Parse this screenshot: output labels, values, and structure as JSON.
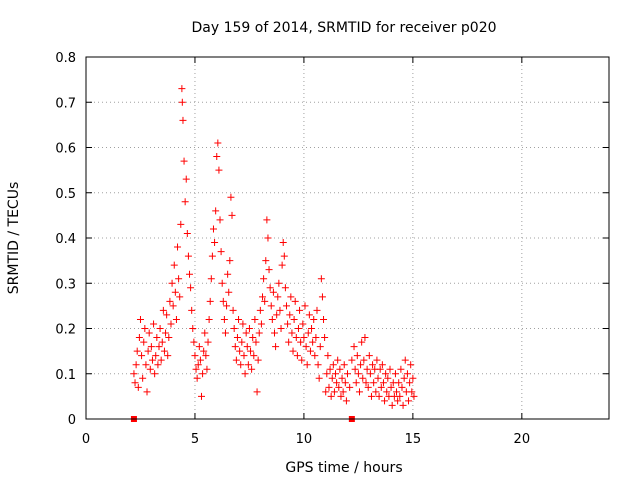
{
  "chart_data": {
    "type": "scatter",
    "title": "Day 159 of 2014, SRMTID for receiver p020",
    "xlabel": "GPS time / hours",
    "ylabel": "SRMTID / TECUs",
    "xlim": [
      0,
      24
    ],
    "ylim": [
      0,
      0.8
    ],
    "xticks": [
      0,
      5,
      10,
      15,
      20
    ],
    "yticks": [
      0,
      0.1,
      0.2,
      0.3,
      0.4,
      0.5,
      0.6,
      0.7,
      0.8
    ],
    "grid": true,
    "legend": "none",
    "marker": "+",
    "color": "#ff0000",
    "series": [
      {
        "name": "SRMTID",
        "points": [
          [
            2.2,
            0.1
          ],
          [
            2.25,
            0.08
          ],
          [
            2.3,
            0.12
          ],
          [
            2.35,
            0.15
          ],
          [
            2.4,
            0.07
          ],
          [
            2.45,
            0.18
          ],
          [
            2.5,
            0.22
          ],
          [
            2.55,
            0.14
          ],
          [
            2.6,
            0.09
          ],
          [
            2.65,
            0.17
          ],
          [
            2.7,
            0.2
          ],
          [
            2.75,
            0.12
          ],
          [
            2.8,
            0.06
          ],
          [
            2.85,
            0.15
          ],
          [
            2.9,
            0.19
          ],
          [
            2.95,
            0.11
          ],
          [
            3.0,
            0.16
          ],
          [
            3.05,
            0.13
          ],
          [
            3.1,
            0.21
          ],
          [
            3.15,
            0.1
          ],
          [
            3.2,
            0.14
          ],
          [
            3.25,
            0.18
          ],
          [
            3.3,
            0.12
          ],
          [
            3.35,
            0.16
          ],
          [
            3.4,
            0.2
          ],
          [
            3.45,
            0.13
          ],
          [
            3.5,
            0.17
          ],
          [
            3.55,
            0.24
          ],
          [
            3.6,
            0.15
          ],
          [
            3.65,
            0.19
          ],
          [
            3.7,
            0.23
          ],
          [
            3.75,
            0.14
          ],
          [
            3.8,
            0.18
          ],
          [
            3.85,
            0.26
          ],
          [
            3.9,
            0.21
          ],
          [
            3.95,
            0.3
          ],
          [
            4.0,
            0.25
          ],
          [
            4.05,
            0.34
          ],
          [
            4.1,
            0.28
          ],
          [
            4.15,
            0.22
          ],
          [
            4.2,
            0.38
          ],
          [
            4.25,
            0.31
          ],
          [
            4.3,
            0.27
          ],
          [
            4.35,
            0.43
          ],
          [
            4.4,
            0.73
          ],
          [
            4.42,
            0.7
          ],
          [
            4.45,
            0.66
          ],
          [
            4.5,
            0.57
          ],
          [
            4.55,
            0.48
          ],
          [
            4.6,
            0.53
          ],
          [
            4.65,
            0.41
          ],
          [
            4.7,
            0.36
          ],
          [
            4.75,
            0.32
          ],
          [
            4.8,
            0.29
          ],
          [
            4.85,
            0.24
          ],
          [
            4.9,
            0.2
          ],
          [
            4.95,
            0.17
          ],
          [
            5.0,
            0.14
          ],
          [
            5.05,
            0.11
          ],
          [
            5.1,
            0.09
          ],
          [
            5.15,
            0.12
          ],
          [
            5.2,
            0.16
          ],
          [
            5.25,
            0.13
          ],
          [
            5.3,
            0.05
          ],
          [
            5.35,
            0.1
          ],
          [
            5.4,
            0.15
          ],
          [
            5.45,
            0.19
          ],
          [
            5.5,
            0.14
          ],
          [
            5.55,
            0.11
          ],
          [
            5.6,
            0.17
          ],
          [
            5.65,
            0.22
          ],
          [
            5.7,
            0.26
          ],
          [
            5.75,
            0.31
          ],
          [
            5.8,
            0.36
          ],
          [
            5.85,
            0.42
          ],
          [
            5.9,
            0.39
          ],
          [
            5.95,
            0.46
          ],
          [
            6.0,
            0.58
          ],
          [
            6.05,
            0.61
          ],
          [
            6.1,
            0.55
          ],
          [
            6.15,
            0.44
          ],
          [
            6.2,
            0.37
          ],
          [
            6.25,
            0.3
          ],
          [
            6.3,
            0.26
          ],
          [
            6.35,
            0.22
          ],
          [
            6.4,
            0.19
          ],
          [
            6.45,
            0.25
          ],
          [
            6.5,
            0.32
          ],
          [
            6.55,
            0.28
          ],
          [
            6.6,
            0.35
          ],
          [
            6.65,
            0.49
          ],
          [
            6.7,
            0.45
          ],
          [
            6.75,
            0.24
          ],
          [
            6.8,
            0.2
          ],
          [
            6.85,
            0.16
          ],
          [
            6.9,
            0.13
          ],
          [
            6.95,
            0.18
          ],
          [
            7.0,
            0.22
          ],
          [
            7.05,
            0.15
          ],
          [
            7.1,
            0.12
          ],
          [
            7.15,
            0.17
          ],
          [
            7.2,
            0.21
          ],
          [
            7.25,
            0.14
          ],
          [
            7.3,
            0.1
          ],
          [
            7.35,
            0.19
          ],
          [
            7.4,
            0.16
          ],
          [
            7.45,
            0.12
          ],
          [
            7.5,
            0.2
          ],
          [
            7.55,
            0.15
          ],
          [
            7.6,
            0.11
          ],
          [
            7.65,
            0.18
          ],
          [
            7.7,
            0.14
          ],
          [
            7.75,
            0.22
          ],
          [
            7.8,
            0.17
          ],
          [
            7.85,
            0.06
          ],
          [
            7.9,
            0.13
          ],
          [
            7.95,
            0.19
          ],
          [
            8.0,
            0.24
          ],
          [
            8.05,
            0.21
          ],
          [
            8.1,
            0.27
          ],
          [
            8.15,
            0.31
          ],
          [
            8.2,
            0.26
          ],
          [
            8.25,
            0.35
          ],
          [
            8.3,
            0.44
          ],
          [
            8.35,
            0.4
          ],
          [
            8.4,
            0.33
          ],
          [
            8.45,
            0.29
          ],
          [
            8.5,
            0.25
          ],
          [
            8.55,
            0.22
          ],
          [
            8.6,
            0.28
          ],
          [
            8.65,
            0.19
          ],
          [
            8.7,
            0.16
          ],
          [
            8.75,
            0.23
          ],
          [
            8.8,
            0.27
          ],
          [
            8.85,
            0.3
          ],
          [
            8.9,
            0.24
          ],
          [
            8.95,
            0.2
          ],
          [
            9.0,
            0.34
          ],
          [
            9.05,
            0.39
          ],
          [
            9.1,
            0.36
          ],
          [
            9.15,
            0.29
          ],
          [
            9.2,
            0.25
          ],
          [
            9.25,
            0.21
          ],
          [
            9.3,
            0.17
          ],
          [
            9.35,
            0.23
          ],
          [
            9.4,
            0.27
          ],
          [
            9.45,
            0.19
          ],
          [
            9.5,
            0.15
          ],
          [
            9.55,
            0.22
          ],
          [
            9.6,
            0.26
          ],
          [
            9.65,
            0.18
          ],
          [
            9.7,
            0.14
          ],
          [
            9.75,
            0.2
          ],
          [
            9.8,
            0.24
          ],
          [
            9.85,
            0.17
          ],
          [
            9.9,
            0.13
          ],
          [
            9.95,
            0.21
          ],
          [
            10.0,
            0.18
          ],
          [
            10.05,
            0.25
          ],
          [
            10.1,
            0.16
          ],
          [
            10.15,
            0.12
          ],
          [
            10.2,
            0.19
          ],
          [
            10.25,
            0.23
          ],
          [
            10.3,
            0.15
          ],
          [
            10.35,
            0.2
          ],
          [
            10.4,
            0.17
          ],
          [
            10.45,
            0.22
          ],
          [
            10.5,
            0.14
          ],
          [
            10.55,
            0.18
          ],
          [
            10.6,
            0.24
          ],
          [
            10.65,
            0.12
          ],
          [
            10.7,
            0.09
          ],
          [
            10.75,
            0.16
          ],
          [
            10.8,
            0.31
          ],
          [
            10.85,
            0.27
          ],
          [
            10.9,
            0.22
          ],
          [
            10.95,
            0.18
          ],
          [
            11.0,
            0.06
          ],
          [
            11.05,
            0.1
          ],
          [
            11.1,
            0.14
          ],
          [
            11.15,
            0.07
          ],
          [
            11.2,
            0.11
          ],
          [
            11.25,
            0.05
          ],
          [
            11.3,
            0.09
          ],
          [
            11.35,
            0.12
          ],
          [
            11.4,
            0.06
          ],
          [
            11.45,
            0.1
          ],
          [
            11.5,
            0.08
          ],
          [
            11.55,
            0.13
          ],
          [
            11.6,
            0.07
          ],
          [
            11.65,
            0.11
          ],
          [
            11.7,
            0.05
          ],
          [
            11.75,
            0.09
          ],
          [
            11.8,
            0.06
          ],
          [
            11.85,
            0.12
          ],
          [
            11.9,
            0.08
          ],
          [
            11.95,
            0.04
          ],
          [
            12.0,
            0.1
          ],
          [
            12.1,
            0.07
          ],
          [
            12.2,
            0.13
          ],
          [
            12.3,
            0.16
          ],
          [
            12.35,
            0.11
          ],
          [
            12.4,
            0.08
          ],
          [
            12.45,
            0.14
          ],
          [
            12.5,
            0.1
          ],
          [
            12.55,
            0.06
          ],
          [
            12.6,
            0.12
          ],
          [
            12.65,
            0.17
          ],
          [
            12.7,
            0.09
          ],
          [
            12.75,
            0.13
          ],
          [
            12.8,
            0.18
          ],
          [
            12.85,
            0.08
          ],
          [
            12.9,
            0.11
          ],
          [
            12.95,
            0.07
          ],
          [
            13.0,
            0.14
          ],
          [
            13.05,
            0.1
          ],
          [
            13.1,
            0.05
          ],
          [
            13.15,
            0.12
          ],
          [
            13.2,
            0.08
          ],
          [
            13.25,
            0.11
          ],
          [
            13.3,
            0.06
          ],
          [
            13.35,
            0.13
          ],
          [
            13.4,
            0.09
          ],
          [
            13.45,
            0.05
          ],
          [
            13.5,
            0.11
          ],
          [
            13.55,
            0.07
          ],
          [
            13.6,
            0.12
          ],
          [
            13.65,
            0.08
          ],
          [
            13.7,
            0.04
          ],
          [
            13.75,
            0.1
          ],
          [
            13.8,
            0.06
          ],
          [
            13.85,
            0.09
          ],
          [
            13.9,
            0.05
          ],
          [
            13.95,
            0.11
          ],
          [
            14.0,
            0.07
          ],
          [
            14.05,
            0.03
          ],
          [
            14.1,
            0.08
          ],
          [
            14.15,
            0.05
          ],
          [
            14.2,
            0.1
          ],
          [
            14.25,
            0.06
          ],
          [
            14.3,
            0.04
          ],
          [
            14.35,
            0.08
          ],
          [
            14.4,
            0.05
          ],
          [
            14.45,
            0.11
          ],
          [
            14.5,
            0.07
          ],
          [
            14.55,
            0.03
          ],
          [
            14.6,
            0.09
          ],
          [
            14.65,
            0.13
          ],
          [
            14.7,
            0.06
          ],
          [
            14.75,
            0.1
          ],
          [
            14.8,
            0.04
          ],
          [
            14.85,
            0.08
          ],
          [
            14.9,
            0.12
          ],
          [
            14.95,
            0.06
          ],
          [
            15.0,
            0.09
          ],
          [
            15.05,
            0.05
          ]
        ]
      },
      {
        "name": "marker-squares",
        "points": [
          [
            2.2,
            0.0
          ],
          [
            12.2,
            0.0
          ]
        ]
      }
    ]
  }
}
